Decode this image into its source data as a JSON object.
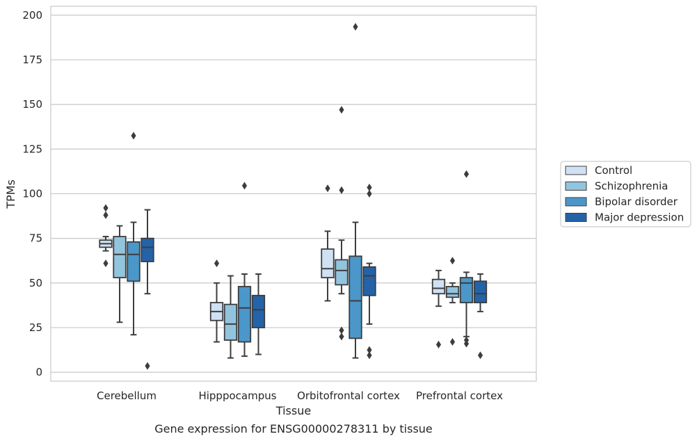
{
  "caption": "Gene expression for ENSG00000278311 by tissue",
  "chart_data": {
    "type": "box",
    "xlabel": "Tissue",
    "ylabel": "TPMs",
    "ylim": [
      -5,
      205
    ],
    "yticks": [
      0,
      25,
      50,
      75,
      100,
      125,
      150,
      175,
      200
    ],
    "grid": "horizontal",
    "legend_position": "right",
    "categories": [
      "Cerebellum",
      "Hipppocampus",
      "Orbitofrontal cortex",
      "Prefrontal cortex"
    ],
    "series": [
      {
        "name": "Control",
        "color": "#cfe1f2",
        "boxes": [
          {
            "whislo": 68,
            "q1": 70,
            "med": 72,
            "q3": 74,
            "whishi": 76,
            "fliers": [
              92,
              88,
              61
            ]
          },
          {
            "whislo": 17,
            "q1": 29,
            "med": 34,
            "q3": 39,
            "whishi": 50,
            "fliers": [
              61
            ]
          },
          {
            "whislo": 40,
            "q1": 53,
            "med": 58,
            "q3": 69,
            "whishi": 79,
            "fliers": [
              103
            ]
          },
          {
            "whislo": 37,
            "q1": 44,
            "med": 47,
            "q3": 52,
            "whishi": 57,
            "fliers": [
              15.5
            ]
          }
        ]
      },
      {
        "name": "Schizophrenia",
        "color": "#93c4de",
        "boxes": [
          {
            "whislo": 28,
            "q1": 53,
            "med": 66,
            "q3": 76,
            "whishi": 82,
            "fliers": []
          },
          {
            "whislo": 8,
            "q1": 18,
            "med": 27,
            "q3": 38,
            "whishi": 54,
            "fliers": []
          },
          {
            "whislo": 44,
            "q1": 49,
            "med": 57,
            "q3": 63,
            "whishi": 74,
            "fliers": [
              147,
              102,
              23.5,
              20
            ]
          },
          {
            "whislo": 39,
            "q1": 42,
            "med": 44,
            "q3": 48,
            "whishi": 50,
            "fliers": [
              62.5,
              17
            ]
          }
        ]
      },
      {
        "name": "Bipolar disorder",
        "color": "#4b97c9",
        "boxes": [
          {
            "whislo": 21,
            "q1": 51,
            "med": 66,
            "q3": 73,
            "whishi": 84,
            "fliers": [
              132.5
            ]
          },
          {
            "whislo": 9,
            "q1": 17,
            "med": 36,
            "q3": 48,
            "whishi": 55,
            "fliers": [
              104.5
            ]
          },
          {
            "whislo": 8,
            "q1": 19,
            "med": 40,
            "q3": 65,
            "whishi": 84,
            "fliers": [
              193.5
            ]
          },
          {
            "whislo": 20,
            "q1": 39,
            "med": 50,
            "q3": 53,
            "whishi": 56,
            "fliers": [
              111,
              18,
              16
            ]
          }
        ]
      },
      {
        "name": "Major depression",
        "color": "#2463a8",
        "boxes": [
          {
            "whislo": 44,
            "q1": 62,
            "med": 70,
            "q3": 75,
            "whishi": 91,
            "fliers": [
              3.5
            ]
          },
          {
            "whislo": 10,
            "q1": 25,
            "med": 35,
            "q3": 43,
            "whishi": 55,
            "fliers": []
          },
          {
            "whislo": 27,
            "q1": 43,
            "med": 54,
            "q3": 59,
            "whishi": 61,
            "fliers": [
              103.5,
              100,
              12.5,
              9.5
            ]
          },
          {
            "whislo": 34,
            "q1": 39,
            "med": 44,
            "q3": 51,
            "whishi": 55,
            "fliers": [
              9.5
            ]
          }
        ]
      }
    ]
  }
}
